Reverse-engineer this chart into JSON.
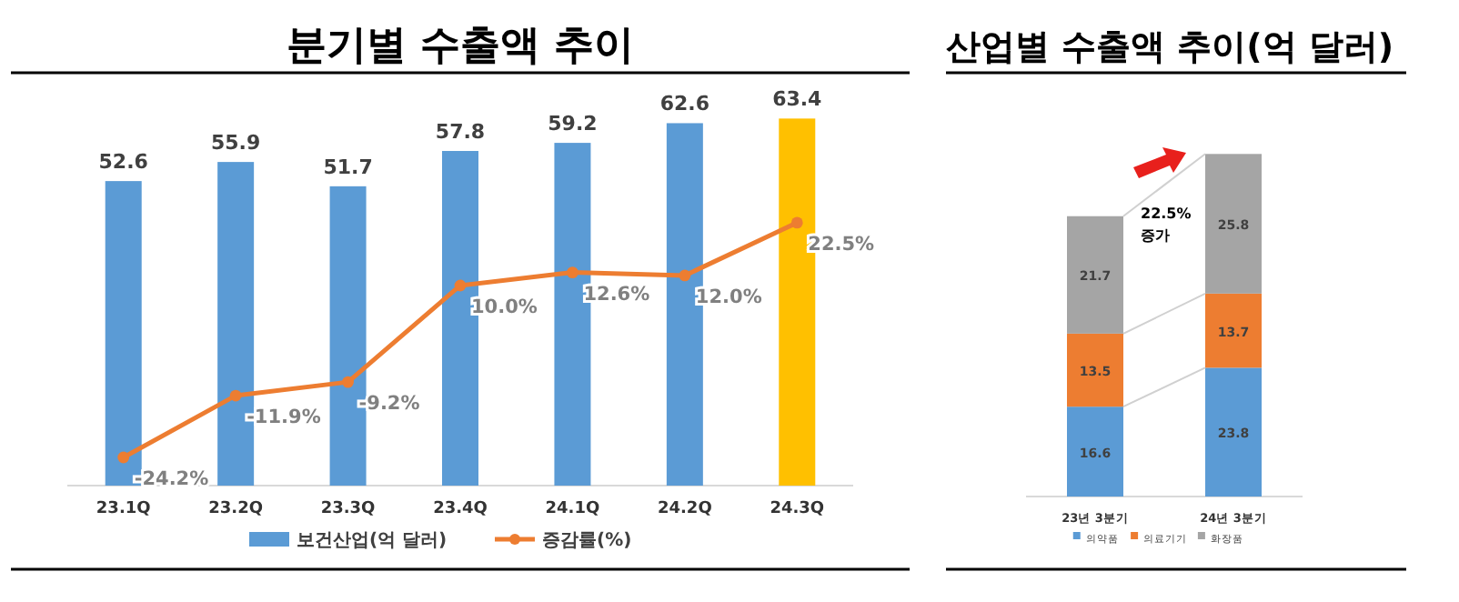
{
  "chart_data": [
    {
      "type": "bar",
      "title": "분기별 수출액 추이",
      "categories": [
        "23.1Q",
        "23.2Q",
        "23.3Q",
        "23.4Q",
        "24.1Q",
        "24.2Q",
        "24.3Q"
      ],
      "series": [
        {
          "name": "보건산업(억 달러)",
          "type": "bar",
          "color": "#5b9bd5",
          "colors": [
            "#5b9bd5",
            "#5b9bd5",
            "#5b9bd5",
            "#5b9bd5",
            "#5b9bd5",
            "#5b9bd5",
            "#ffc000"
          ],
          "values": [
            52.6,
            55.9,
            51.7,
            57.8,
            59.2,
            62.6,
            63.4
          ],
          "value_labels": [
            "52.6",
            "55.9",
            "51.7",
            "57.8",
            "59.2",
            "62.6",
            "63.4"
          ]
        },
        {
          "name": "증감률(%)",
          "type": "line",
          "axis": "y2",
          "color": "#ed7d31",
          "marker": "circle",
          "values": [
            -24.2,
            -11.9,
            -9.2,
            10.0,
            12.6,
            12.0,
            22.5
          ],
          "value_labels": [
            "-24.2%",
            "-11.9%",
            "-9.2%",
            "10.0%",
            "12.6%",
            "12.0%",
            "22.5%"
          ]
        }
      ],
      "tick_labels": "x",
      "legend": "bottom"
    },
    {
      "type": "bar",
      "title": "산업별 수출액 추이(억 달러)",
      "stacked": true,
      "categories": [
        "23년 3분기",
        "24년 3분기"
      ],
      "series": [
        {
          "name": "의약품",
          "color": "#5b9bd5",
          "values": [
            16.6,
            23.8
          ]
        },
        {
          "name": "의료기기",
          "color": "#ed7d31",
          "values": [
            13.5,
            13.7
          ]
        },
        {
          "name": "화장품",
          "color": "#a5a5a5",
          "values": [
            21.7,
            25.8
          ]
        }
      ],
      "tick_labels": "x",
      "data_labels": true,
      "legend": "bottom",
      "annotations": [
        "22.5% 증가"
      ]
    }
  ]
}
